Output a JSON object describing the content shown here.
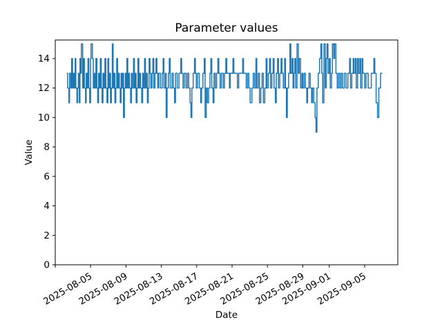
{
  "chart_data": {
    "type": "line",
    "draw_style": "steps-post",
    "title": "Parameter values",
    "xlabel": "Date",
    "ylabel": "Value",
    "line_color": "#1f77b4",
    "axis_color": "#000000",
    "background_color": "#ffffff",
    "grid": false,
    "legend": false,
    "x_unit": "days since 2025-08-01",
    "xlim": [
      0,
      38.75
    ],
    "ylim": [
      0,
      15.26
    ],
    "y_ticks": [
      0,
      2,
      4,
      6,
      8,
      10,
      12,
      14
    ],
    "x_ticks": [
      {
        "day": 0,
        "label": ""
      },
      {
        "day": 4,
        "label": "2025-08-05"
      },
      {
        "day": 8,
        "label": "2025-08-09"
      },
      {
        "day": 12,
        "label": "2025-08-13"
      },
      {
        "day": 16,
        "label": "2025-08-17"
      },
      {
        "day": 20,
        "label": "2025-08-21"
      },
      {
        "day": 24,
        "label": "2025-08-25"
      },
      {
        "day": 28,
        "label": "2025-08-29"
      },
      {
        "day": 31,
        "label": "2025-09-01"
      },
      {
        "day": 35,
        "label": "2025-09-05"
      }
    ],
    "end_day": 37.0,
    "runs": [
      [
        1.3,
        13
      ],
      [
        1.4,
        12
      ],
      [
        1.55,
        11
      ],
      [
        1.62,
        13
      ],
      [
        1.75,
        12
      ],
      [
        1.85,
        14
      ],
      [
        1.95,
        12
      ],
      [
        2.05,
        13
      ],
      [
        2.15,
        12
      ],
      [
        2.25,
        14
      ],
      [
        2.33,
        12
      ],
      [
        2.45,
        11
      ],
      [
        2.52,
        12
      ],
      [
        2.62,
        13
      ],
      [
        2.72,
        11
      ],
      [
        2.8,
        14
      ],
      [
        2.9,
        13
      ],
      [
        2.95,
        15
      ],
      [
        3.1,
        12
      ],
      [
        3.2,
        14
      ],
      [
        3.3,
        12
      ],
      [
        3.42,
        11
      ],
      [
        3.5,
        13
      ],
      [
        3.6,
        12
      ],
      [
        3.7,
        14
      ],
      [
        3.8,
        12
      ],
      [
        3.9,
        11
      ],
      [
        4.0,
        14
      ],
      [
        4.05,
        15
      ],
      [
        4.2,
        14
      ],
      [
        4.3,
        12
      ],
      [
        4.42,
        13
      ],
      [
        4.5,
        12
      ],
      [
        4.6,
        14
      ],
      [
        4.7,
        12
      ],
      [
        4.8,
        11
      ],
      [
        4.9,
        13
      ],
      [
        5.0,
        12
      ],
      [
        5.1,
        14
      ],
      [
        5.2,
        12
      ],
      [
        5.3,
        11
      ],
      [
        5.4,
        13
      ],
      [
        5.5,
        12
      ],
      [
        5.62,
        14
      ],
      [
        5.72,
        12
      ],
      [
        5.85,
        11
      ],
      [
        5.95,
        14
      ],
      [
        6.05,
        12
      ],
      [
        6.15,
        13
      ],
      [
        6.25,
        11
      ],
      [
        6.35,
        12
      ],
      [
        6.45,
        15
      ],
      [
        6.55,
        12
      ],
      [
        6.65,
        13
      ],
      [
        6.75,
        11
      ],
      [
        6.85,
        12
      ],
      [
        6.95,
        14
      ],
      [
        7.05,
        12
      ],
      [
        7.15,
        13
      ],
      [
        7.25,
        12
      ],
      [
        7.35,
        11
      ],
      [
        7.45,
        13
      ],
      [
        7.55,
        12
      ],
      [
        7.65,
        13
      ],
      [
        7.72,
        10
      ],
      [
        7.82,
        12
      ],
      [
        7.92,
        13
      ],
      [
        8.0,
        12
      ],
      [
        8.1,
        14
      ],
      [
        8.2,
        12
      ],
      [
        8.3,
        13
      ],
      [
        8.4,
        12
      ],
      [
        8.52,
        11
      ],
      [
        8.62,
        13
      ],
      [
        8.72,
        12
      ],
      [
        8.85,
        14
      ],
      [
        8.95,
        12
      ],
      [
        9.05,
        13
      ],
      [
        9.15,
        11
      ],
      [
        9.25,
        12
      ],
      [
        9.35,
        14
      ],
      [
        9.45,
        12
      ],
      [
        9.55,
        13
      ],
      [
        9.65,
        12
      ],
      [
        9.78,
        11
      ],
      [
        9.88,
        13
      ],
      [
        9.98,
        12
      ],
      [
        10.1,
        14
      ],
      [
        10.2,
        12
      ],
      [
        10.3,
        13
      ],
      [
        10.42,
        11
      ],
      [
        10.52,
        12
      ],
      [
        10.62,
        14
      ],
      [
        10.72,
        13
      ],
      [
        10.82,
        12
      ],
      [
        10.95,
        13
      ],
      [
        11.05,
        14
      ],
      [
        11.15,
        12
      ],
      [
        11.28,
        13
      ],
      [
        11.4,
        14
      ],
      [
        11.5,
        13
      ],
      [
        11.6,
        12
      ],
      [
        11.7,
        13
      ],
      [
        11.9,
        12
      ],
      [
        12.1,
        13
      ],
      [
        12.2,
        14
      ],
      [
        12.3,
        12
      ],
      [
        12.45,
        13
      ],
      [
        12.55,
        10
      ],
      [
        12.65,
        12
      ],
      [
        12.8,
        13
      ],
      [
        12.9,
        14
      ],
      [
        13.0,
        12
      ],
      [
        13.2,
        13
      ],
      [
        13.35,
        12
      ],
      [
        13.5,
        11
      ],
      [
        13.6,
        13
      ],
      [
        13.8,
        12
      ],
      [
        14.0,
        13
      ],
      [
        14.2,
        14
      ],
      [
        14.3,
        13
      ],
      [
        14.45,
        12
      ],
      [
        14.6,
        13
      ],
      [
        14.8,
        12
      ],
      [
        14.95,
        13
      ],
      [
        15.1,
        12
      ],
      [
        15.25,
        11
      ],
      [
        15.35,
        10
      ],
      [
        15.45,
        12
      ],
      [
        15.6,
        13
      ],
      [
        15.75,
        14
      ],
      [
        15.85,
        13
      ],
      [
        15.95,
        12
      ],
      [
        16.1,
        13
      ],
      [
        16.3,
        12
      ],
      [
        16.45,
        11
      ],
      [
        16.55,
        12
      ],
      [
        16.7,
        13
      ],
      [
        16.85,
        14
      ],
      [
        16.95,
        10
      ],
      [
        17.08,
        12
      ],
      [
        17.2,
        11
      ],
      [
        17.35,
        12
      ],
      [
        17.5,
        13
      ],
      [
        17.6,
        14
      ],
      [
        17.7,
        12
      ],
      [
        17.85,
        11
      ],
      [
        17.95,
        13
      ],
      [
        18.1,
        12
      ],
      [
        18.25,
        13
      ],
      [
        18.4,
        14
      ],
      [
        18.5,
        13
      ],
      [
        18.65,
        12
      ],
      [
        18.8,
        13
      ],
      [
        19.0,
        12
      ],
      [
        19.15,
        13
      ],
      [
        19.3,
        14
      ],
      [
        19.4,
        13
      ],
      [
        19.7,
        12
      ],
      [
        19.8,
        13
      ],
      [
        20.1,
        14
      ],
      [
        20.2,
        13
      ],
      [
        20.6,
        12
      ],
      [
        20.75,
        13
      ],
      [
        21.2,
        14
      ],
      [
        21.3,
        13
      ],
      [
        21.6,
        12
      ],
      [
        21.75,
        13
      ],
      [
        21.9,
        12
      ],
      [
        22.05,
        11
      ],
      [
        22.25,
        12
      ],
      [
        22.4,
        13
      ],
      [
        22.55,
        12
      ],
      [
        22.7,
        14
      ],
      [
        22.8,
        12
      ],
      [
        22.95,
        13
      ],
      [
        23.1,
        11
      ],
      [
        23.25,
        12
      ],
      [
        23.4,
        13
      ],
      [
        23.55,
        11
      ],
      [
        23.7,
        12
      ],
      [
        23.85,
        14
      ],
      [
        23.95,
        12
      ],
      [
        24.1,
        13
      ],
      [
        24.25,
        14
      ],
      [
        24.35,
        12
      ],
      [
        24.5,
        13
      ],
      [
        24.65,
        14
      ],
      [
        24.75,
        12
      ],
      [
        24.9,
        11
      ],
      [
        25.0,
        13
      ],
      [
        25.15,
        14
      ],
      [
        25.25,
        12
      ],
      [
        25.4,
        13
      ],
      [
        25.55,
        14
      ],
      [
        25.65,
        13
      ],
      [
        25.8,
        12
      ],
      [
        25.95,
        14
      ],
      [
        26.05,
        12
      ],
      [
        26.15,
        10
      ],
      [
        26.25,
        12
      ],
      [
        26.4,
        13
      ],
      [
        26.55,
        15
      ],
      [
        26.65,
        13
      ],
      [
        26.8,
        14
      ],
      [
        26.9,
        12
      ],
      [
        27.0,
        13
      ],
      [
        27.1,
        14
      ],
      [
        27.2,
        12
      ],
      [
        27.35,
        15
      ],
      [
        27.5,
        13
      ],
      [
        27.6,
        14
      ],
      [
        27.75,
        12
      ],
      [
        27.9,
        13
      ],
      [
        28.0,
        12
      ],
      [
        28.15,
        13
      ],
      [
        28.3,
        12
      ],
      [
        28.45,
        11
      ],
      [
        28.55,
        12
      ],
      [
        28.7,
        13
      ],
      [
        28.85,
        12
      ],
      [
        29.0,
        11
      ],
      [
        29.1,
        12
      ],
      [
        29.25,
        11
      ],
      [
        29.4,
        10
      ],
      [
        29.5,
        9
      ],
      [
        29.6,
        12
      ],
      [
        29.75,
        13
      ],
      [
        29.9,
        14
      ],
      [
        30.05,
        15
      ],
      [
        30.15,
        13
      ],
      [
        30.25,
        11
      ],
      [
        30.4,
        15
      ],
      [
        30.55,
        12
      ],
      [
        30.65,
        14
      ],
      [
        30.75,
        15
      ],
      [
        30.85,
        13
      ],
      [
        31.0,
        14
      ],
      [
        31.1,
        12
      ],
      [
        31.25,
        13
      ],
      [
        31.35,
        15
      ],
      [
        31.5,
        14
      ],
      [
        31.6,
        15
      ],
      [
        31.75,
        13
      ],
      [
        31.9,
        12
      ],
      [
        32.05,
        13
      ],
      [
        32.2,
        12
      ],
      [
        32.35,
        13
      ],
      [
        32.5,
        12
      ],
      [
        32.7,
        13
      ],
      [
        32.9,
        12
      ],
      [
        33.1,
        13
      ],
      [
        33.3,
        14
      ],
      [
        33.4,
        12
      ],
      [
        33.55,
        13
      ],
      [
        33.7,
        14
      ],
      [
        33.8,
        13
      ],
      [
        33.95,
        14
      ],
      [
        34.05,
        12
      ],
      [
        34.2,
        14
      ],
      [
        34.3,
        13
      ],
      [
        34.45,
        14
      ],
      [
        34.55,
        12
      ],
      [
        34.7,
        14
      ],
      [
        34.8,
        13
      ],
      [
        35.0,
        12
      ],
      [
        35.15,
        13
      ],
      [
        35.4,
        12
      ],
      [
        35.75,
        13
      ],
      [
        36.05,
        14
      ],
      [
        36.15,
        13
      ],
      [
        36.3,
        11
      ],
      [
        36.45,
        10
      ],
      [
        36.6,
        12
      ],
      [
        36.8,
        13
      ]
    ]
  }
}
